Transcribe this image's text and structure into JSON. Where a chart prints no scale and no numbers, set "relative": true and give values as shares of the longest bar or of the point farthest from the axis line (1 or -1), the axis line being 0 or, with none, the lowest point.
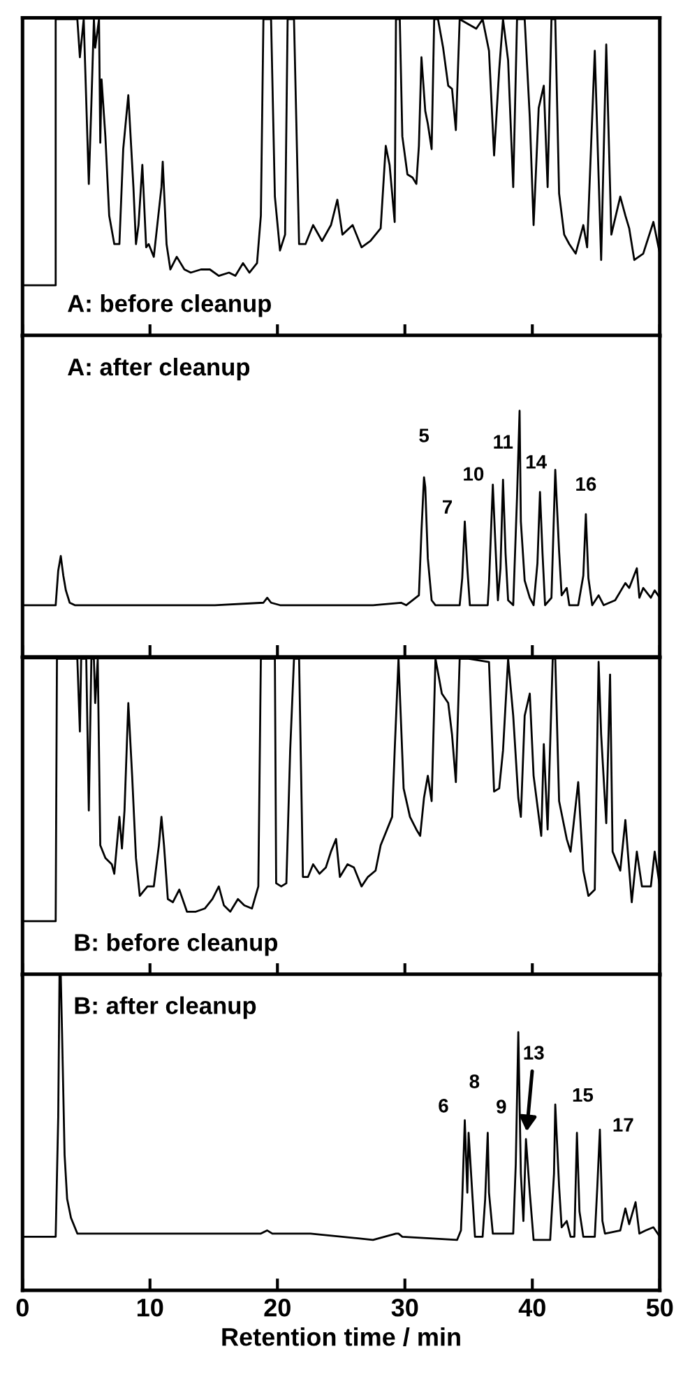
{
  "chart_data": [
    {
      "type": "line",
      "relative": true,
      "title": "A: before cleanup",
      "xlim": [
        0,
        50
      ],
      "xticks": [
        0,
        10,
        20,
        30,
        40,
        50
      ],
      "tick_labels": false,
      "series": [
        {
          "color": "#000000",
          "x": [
            0,
            2.6,
            2.6,
            4.3,
            4.5,
            4.8,
            5.2,
            5.4,
            5.6,
            5.7,
            6.0,
            6.1,
            6.2,
            6.5,
            6.8,
            7.2,
            7.6,
            7.9,
            8.3,
            8.7,
            8.9,
            9.1,
            9.4,
            9.7,
            9.9,
            10.3,
            10.9,
            11.0,
            11.3,
            11.6,
            12.1,
            12.7,
            13.2,
            14.0,
            14.7,
            15.4,
            16.2,
            16.7,
            17.3,
            17.8,
            18.4,
            18.7,
            18.9,
            19.5,
            19.8,
            20.2,
            20.6,
            20.8,
            21.3,
            21.7,
            22.2,
            22.8,
            23.5,
            24.2,
            24.7,
            25.1,
            25.9,
            26.6,
            27.3,
            28.1,
            28.5,
            28.8,
            29.2,
            29.3,
            29.6,
            29.8,
            30.2,
            30.6,
            30.9,
            31.1,
            31.3,
            31.6,
            31.8,
            32.1,
            32.3,
            32.6,
            33.0,
            33.4,
            33.7,
            34.0,
            34.3,
            35.6,
            36.1,
            36.6,
            37.0,
            37.4,
            37.7,
            38.1,
            38.5,
            38.8,
            39.4,
            39.8,
            40.1,
            40.5,
            40.9,
            41.2,
            41.5,
            41.8,
            42.1,
            42.5,
            42.9,
            43.4,
            44.0,
            44.3,
            44.9,
            45.4,
            45.8,
            46.2,
            46.9,
            47.3,
            47.6,
            48.0,
            48.7,
            49.5,
            50.0
          ],
          "values": [
            0.16,
            0.16,
            1,
            1,
            0.88,
            1,
            0.48,
            0.73,
            1,
            0.91,
            1,
            0.61,
            0.81,
            0.63,
            0.38,
            0.29,
            0.29,
            0.59,
            0.76,
            0.47,
            0.29,
            0.35,
            0.54,
            0.28,
            0.29,
            0.25,
            0.47,
            0.55,
            0.29,
            0.21,
            0.25,
            0.21,
            0.2,
            0.21,
            0.21,
            0.19,
            0.2,
            0.19,
            0.23,
            0.2,
            0.23,
            0.38,
            1,
            1,
            0.44,
            0.27,
            0.32,
            1,
            1,
            0.29,
            0.29,
            0.35,
            0.3,
            0.35,
            0.43,
            0.32,
            0.35,
            0.28,
            0.3,
            0.34,
            0.6,
            0.54,
            0.36,
            1,
            1,
            0.63,
            0.51,
            0.5,
            0.48,
            0.6,
            0.88,
            0.71,
            0.67,
            0.59,
            1,
            1,
            0.91,
            0.79,
            0.78,
            0.65,
            1,
            0.97,
            1,
            0.9,
            0.57,
            0.84,
            1,
            0.87,
            0.47,
            1,
            1,
            0.69,
            0.35,
            0.72,
            0.79,
            0.47,
            1,
            1,
            0.45,
            0.32,
            0.29,
            0.26,
            0.35,
            0.28,
            0.9,
            0.24,
            0.92,
            0.32,
            0.44,
            0.38,
            0.34,
            0.24,
            0.26,
            0.36,
            0.26
          ]
        }
      ]
    },
    {
      "type": "line",
      "relative": true,
      "title": "A: after cleanup",
      "xlim": [
        0,
        50
      ],
      "xticks": [
        0,
        10,
        20,
        30,
        40,
        50
      ],
      "tick_labels": false,
      "series": [
        {
          "color": "#000000",
          "x": [
            0,
            2.6,
            2.8,
            3.0,
            3.2,
            3.4,
            3.7,
            4.1,
            9.2,
            15.1,
            18.9,
            19.2,
            19.5,
            20.2,
            27.5,
            29.7,
            30.1,
            31.1,
            31.3,
            31.5,
            31.6,
            31.8,
            32.1,
            32.4,
            34.3,
            34.5,
            34.7,
            34.9,
            35.1,
            36.5,
            36.6,
            36.9,
            37.1,
            37.3,
            37.5,
            37.7,
            37.9,
            38.1,
            38.5,
            38.8,
            39.0,
            39.1,
            39.4,
            39.8,
            40.1,
            40.4,
            40.6,
            40.8,
            41.0,
            41.5,
            41.8,
            42.1,
            42.3,
            42.7,
            42.9,
            43.6,
            44.0,
            44.2,
            44.4,
            44.7,
            45.2,
            45.6,
            46.5,
            47.3,
            47.6,
            48.2,
            48.4,
            48.7,
            49.3,
            49.6,
            50.0
          ],
          "values": [
            0.21,
            0.21,
            0.35,
            0.41,
            0.33,
            0.27,
            0.22,
            0.21,
            0.21,
            0.21,
            0.22,
            0.24,
            0.22,
            0.21,
            0.21,
            0.22,
            0.21,
            0.25,
            0.51,
            0.73,
            0.69,
            0.4,
            0.23,
            0.21,
            0.21,
            0.32,
            0.55,
            0.36,
            0.21,
            0.21,
            0.3,
            0.7,
            0.46,
            0.23,
            0.36,
            0.72,
            0.42,
            0.23,
            0.21,
            0.65,
            1,
            0.55,
            0.31,
            0.24,
            0.21,
            0.38,
            0.67,
            0.42,
            0.21,
            0.24,
            0.76,
            0.43,
            0.25,
            0.28,
            0.21,
            0.21,
            0.33,
            0.58,
            0.32,
            0.21,
            0.25,
            0.21,
            0.23,
            0.3,
            0.28,
            0.36,
            0.24,
            0.28,
            0.24,
            0.27,
            0.24
          ]
        }
      ],
      "annotations": [
        {
          "text": "5",
          "x": 31.5,
          "y": 0.73
        },
        {
          "text": "7",
          "x": 34.7,
          "y": 0.55
        },
        {
          "text": "10",
          "x": 36.9,
          "y": 0.7
        },
        {
          "text": "11",
          "x": 37.7,
          "y": 0.72
        },
        {
          "text": "14",
          "x": 40.6,
          "y": 0.67
        },
        {
          "text": "16",
          "x": 44.2,
          "y": 0.58
        }
      ]
    },
    {
      "type": "line",
      "relative": true,
      "title": "B: before cleanup",
      "xlim": [
        0,
        50
      ],
      "xticks": [
        0,
        10,
        20,
        30,
        40,
        50
      ],
      "tick_labels": false,
      "series": [
        {
          "color": "#000000",
          "x": [
            0,
            2.6,
            2.7,
            4.3,
            4.5,
            4.6,
            5.0,
            5.2,
            5.4,
            5.6,
            5.7,
            5.9,
            6.1,
            6.5,
            7.0,
            7.2,
            7.6,
            7.8,
            8.0,
            8.3,
            8.6,
            8.9,
            9.2,
            9.8,
            10.3,
            10.7,
            10.9,
            11.1,
            11.4,
            11.8,
            12.3,
            12.9,
            13.6,
            14.3,
            14.9,
            15.4,
            15.8,
            16.3,
            16.9,
            17.4,
            18.0,
            18.5,
            18.7,
            19.8,
            19.9,
            20.3,
            20.7,
            21.0,
            21.3,
            21.7,
            22.0,
            22.4,
            22.8,
            23.3,
            23.8,
            24.2,
            24.6,
            24.9,
            25.5,
            26.0,
            26.6,
            27.1,
            27.7,
            28.1,
            28.4,
            29.0,
            29.2,
            29.5,
            29.9,
            30.4,
            30.9,
            31.2,
            31.5,
            31.8,
            32.1,
            32.4,
            32.9,
            33.4,
            33.7,
            34.0,
            34.3,
            35.0,
            36.6,
            37.0,
            37.4,
            37.7,
            38.1,
            38.5,
            38.9,
            39.1,
            39.4,
            39.8,
            40.1,
            40.7,
            40.9,
            41.2,
            41.6,
            41.8,
            42.1,
            42.7,
            43.0,
            43.6,
            44.0,
            44.4,
            44.9,
            45.2,
            45.4,
            45.8,
            46.1,
            46.3,
            46.9,
            47.3,
            47.8,
            48.2,
            48.6,
            49.3,
            49.6,
            50.0
          ],
          "values": [
            0.17,
            0.17,
            1,
            1,
            0.77,
            1,
            1,
            0.52,
            1,
            1,
            0.86,
            1,
            0.41,
            0.37,
            0.35,
            0.32,
            0.5,
            0.4,
            0.52,
            0.86,
            0.63,
            0.37,
            0.25,
            0.28,
            0.28,
            0.41,
            0.5,
            0.41,
            0.24,
            0.23,
            0.27,
            0.2,
            0.2,
            0.21,
            0.24,
            0.28,
            0.22,
            0.2,
            0.24,
            0.22,
            0.21,
            0.28,
            1,
            1,
            0.29,
            0.28,
            0.29,
            0.71,
            1,
            1,
            0.31,
            0.31,
            0.35,
            0.32,
            0.34,
            0.39,
            0.43,
            0.31,
            0.35,
            0.34,
            0.28,
            0.31,
            0.33,
            0.41,
            0.44,
            0.5,
            0.71,
            1,
            0.59,
            0.5,
            0.46,
            0.44,
            0.56,
            0.63,
            0.55,
            1,
            0.89,
            0.86,
            0.76,
            0.61,
            1,
            1,
            0.99,
            0.58,
            0.59,
            0.71,
            1,
            0.82,
            0.56,
            0.5,
            0.82,
            0.89,
            0.63,
            0.44,
            0.73,
            0.46,
            1,
            1,
            0.55,
            0.43,
            0.39,
            0.61,
            0.33,
            0.25,
            0.27,
            0.99,
            0.76,
            0.48,
            0.95,
            0.39,
            0.33,
            0.49,
            0.23,
            0.39,
            0.28,
            0.28,
            0.39,
            0.28
          ]
        }
      ]
    },
    {
      "type": "line",
      "relative": true,
      "title": "B: after cleanup",
      "xlim": [
        0,
        50
      ],
      "xticks": [
        0,
        10,
        20,
        30,
        40,
        50
      ],
      "tick_labels": "x",
      "xlabel": "Retention time / min",
      "series": [
        {
          "color": "#000000",
          "x": [
            0,
            2.6,
            2.8,
            2.9,
            3.0,
            3.1,
            3.3,
            3.5,
            3.8,
            4.3,
            4.8,
            9.2,
            15.1,
            18.7,
            19.2,
            19.6,
            21.1,
            21.4,
            21.7,
            22.2,
            22.6,
            27.5,
            29.3,
            29.5,
            29.8,
            34.1,
            34.4,
            34.5,
            34.7,
            34.9,
            35.0,
            35.3,
            35.5,
            36.1,
            36.3,
            36.5,
            36.6,
            36.9,
            38.5,
            38.7,
            38.9,
            39.1,
            39.3,
            39.5,
            39.8,
            40.1,
            41.4,
            41.7,
            41.8,
            42.1,
            42.3,
            42.7,
            43.0,
            43.3,
            43.5,
            43.7,
            44.0,
            44.9,
            45.1,
            45.3,
            45.5,
            45.7,
            46.9,
            47.3,
            47.6,
            48.1,
            48.4,
            48.9,
            49.5,
            50.0
          ],
          "values": [
            0.17,
            0.17,
            0.55,
            1,
            1,
            0.82,
            0.43,
            0.29,
            0.23,
            0.18,
            0.18,
            0.18,
            0.18,
            0.18,
            0.19,
            0.18,
            0.18,
            0.18,
            0.18,
            0.18,
            0.18,
            0.16,
            0.18,
            0.18,
            0.17,
            0.16,
            0.19,
            0.29,
            0.54,
            0.31,
            0.5,
            0.3,
            0.17,
            0.17,
            0.29,
            0.5,
            0.31,
            0.18,
            0.18,
            0.4,
            0.82,
            0.37,
            0.22,
            0.48,
            0.31,
            0.16,
            0.16,
            0.37,
            0.59,
            0.33,
            0.2,
            0.22,
            0.17,
            0.17,
            0.5,
            0.25,
            0.17,
            0.17,
            0.33,
            0.51,
            0.22,
            0.18,
            0.19,
            0.26,
            0.21,
            0.28,
            0.18,
            0.19,
            0.2,
            0.17
          ]
        }
      ],
      "annotations": [
        {
          "text": "6",
          "x": 34.7,
          "y": 0.54
        },
        {
          "text": "8",
          "x": 35.0,
          "y": 0.5
        },
        {
          "text": "9",
          "x": 36.5,
          "y": 0.5
        },
        {
          "text": "13",
          "x": 39.5,
          "y": 0.48
        },
        {
          "text": "15",
          "x": 43.5,
          "y": 0.5
        },
        {
          "text": "17",
          "x": 45.3,
          "y": 0.51
        }
      ]
    }
  ]
}
